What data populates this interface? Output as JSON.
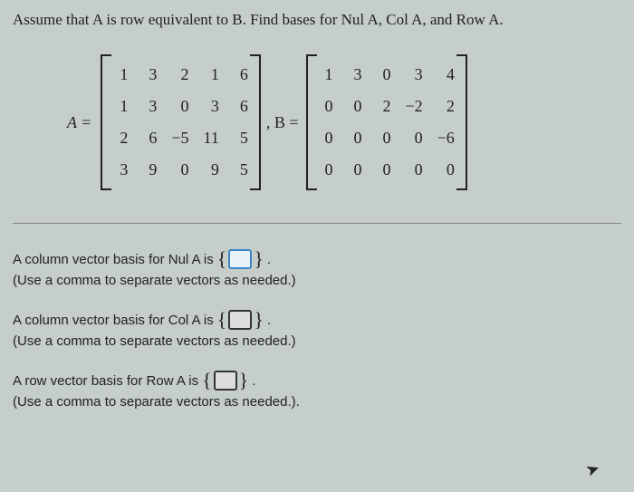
{
  "question_header": "Assume that A is row equivalent to B. Find bases for Nul A, Col A, and Row A.",
  "matrices": {
    "A": {
      "label": "A =",
      "cells": [
        [
          "1",
          "3",
          "2",
          "1",
          "6"
        ],
        [
          "1",
          "3",
          "0",
          "3",
          "6"
        ],
        [
          "2",
          "6",
          "−5",
          "11",
          "5"
        ],
        [
          "3",
          "9",
          "0",
          "9",
          "5"
        ]
      ]
    },
    "separator": ", B =",
    "B": {
      "cells": [
        [
          "1",
          "3",
          "0",
          "3",
          "4"
        ],
        [
          "0",
          "0",
          "2",
          "−2",
          "2"
        ],
        [
          "0",
          "0",
          "0",
          "0",
          "−6"
        ],
        [
          "0",
          "0",
          "0",
          "0",
          "0"
        ]
      ]
    }
  },
  "answers": {
    "nul": {
      "prefix": "A column vector basis for Nul A is ",
      "suffix": ".",
      "hint": "(Use a comma to separate vectors as needed.)",
      "highlighted": true
    },
    "col": {
      "prefix": "A column vector basis for Col A is ",
      "suffix": ".",
      "hint": "(Use a comma to separate vectors as needed.)",
      "highlighted": false
    },
    "row": {
      "prefix": "A row vector basis for Row A is ",
      "suffix": ".",
      "hint": "(Use a comma to separate vectors as needed.).",
      "highlighted": false
    }
  },
  "braces": {
    "left": "{",
    "right": "}"
  }
}
